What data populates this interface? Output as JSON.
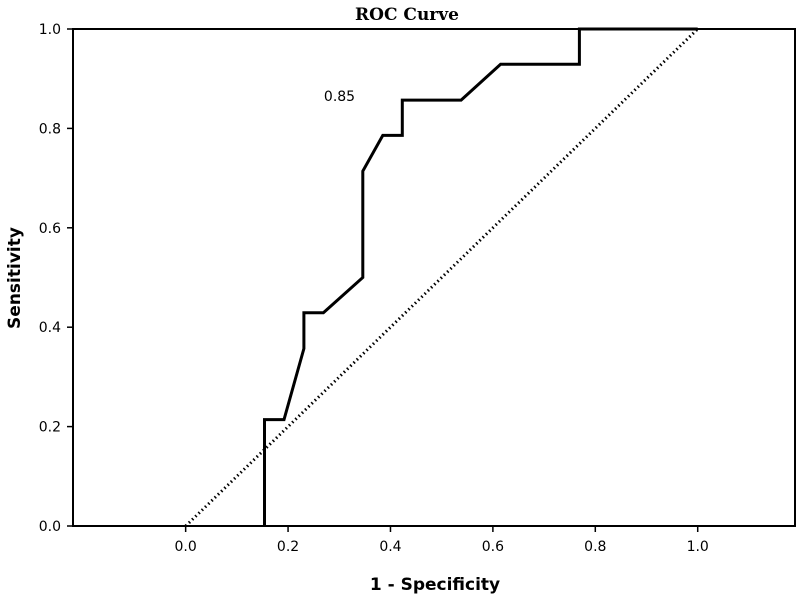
{
  "chart_data": {
    "type": "line",
    "title": "ROC Curve",
    "xlabel": "1 - Specificity",
    "ylabel": "Sensitivity",
    "xlim": [
      -0.22,
      1.19
    ],
    "ylim": [
      0.0,
      1.0
    ],
    "x_ticks": [
      "0.0",
      "0.2",
      "0.4",
      "0.6",
      "0.8",
      "1.0"
    ],
    "y_ticks": [
      "0.0",
      "0.2",
      "0.4",
      "0.6",
      "0.8",
      "1.0"
    ],
    "grid": false,
    "series": [
      {
        "style": "solid",
        "points": [
          [
            0.154,
            0.0
          ],
          [
            0.154,
            0.214
          ],
          [
            0.192,
            0.214
          ],
          [
            0.231,
            0.357
          ],
          [
            0.231,
            0.429
          ],
          [
            0.269,
            0.429
          ],
          [
            0.346,
            0.5
          ],
          [
            0.346,
            0.714
          ],
          [
            0.385,
            0.786
          ],
          [
            0.423,
            0.786
          ],
          [
            0.423,
            0.857
          ],
          [
            0.538,
            0.857
          ],
          [
            0.615,
            0.929
          ],
          [
            0.769,
            0.929
          ],
          [
            0.769,
            1.0
          ],
          [
            1.0,
            1.0
          ]
        ]
      },
      {
        "style": "dotted",
        "points": [
          [
            0.0,
            0.0
          ],
          [
            1.0,
            1.0
          ]
        ]
      }
    ],
    "annotations": [
      {
        "text": "0.85",
        "x": 0.27,
        "y": 0.855
      }
    ]
  }
}
